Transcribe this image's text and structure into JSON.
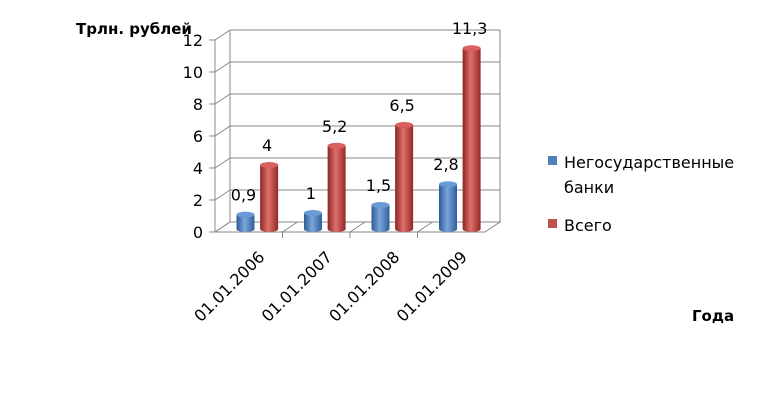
{
  "chart_data": {
    "type": "bar",
    "ylabel": "Трлн. рублей",
    "xlabel": "Года",
    "categories": [
      "01.01.2006",
      "01.01.2007",
      "01.01.2008",
      "01.01.2009"
    ],
    "series": [
      {
        "name": "Негосударственные банки",
        "values": [
          0.9,
          1,
          1.5,
          2.8
        ],
        "labels": [
          "0,9",
          "1",
          "1,5",
          "2,8"
        ],
        "color": "#4f81bd"
      },
      {
        "name": "Всего",
        "values": [
          4,
          5.2,
          6.5,
          11.3
        ],
        "labels": [
          "4",
          "5,2",
          "6,5",
          "11,3"
        ],
        "color": "#c0504d"
      }
    ],
    "yticks": [
      "0",
      "2",
      "4",
      "6",
      "8",
      "10",
      "12"
    ],
    "ylim": [
      0,
      12
    ],
    "grid": true,
    "legend": "right"
  }
}
